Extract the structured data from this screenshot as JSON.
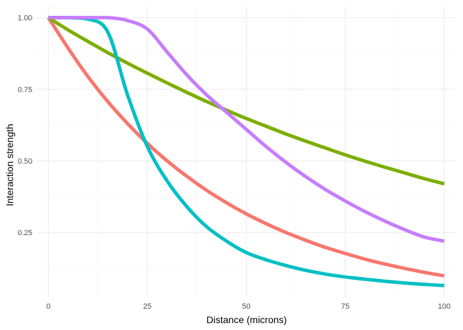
{
  "chart_data": {
    "type": "line",
    "title": "",
    "xlabel": "Distance (microns)",
    "ylabel": "Interaction strength",
    "xlim": [
      -3,
      103
    ],
    "ylim": [
      0.025,
      1.04
    ],
    "x_ticks": [
      0,
      25,
      50,
      75,
      100
    ],
    "x_tick_labels": [
      "0",
      "25",
      "50",
      "75",
      "100"
    ],
    "y_ticks": [
      0.25,
      0.5,
      0.75,
      1.0
    ],
    "y_tick_labels": [
      "0.25",
      "0.50",
      "0.75",
      "1.00"
    ],
    "grid": true,
    "legend": "none",
    "x": [
      0,
      5,
      10,
      15,
      20,
      25,
      30,
      35,
      40,
      45,
      50,
      55,
      60,
      65,
      70,
      75,
      80,
      85,
      90,
      95,
      100
    ],
    "series": [
      {
        "color": "#F8766D",
        "values": [
          1.0,
          0.893,
          0.794,
          0.707,
          0.63,
          0.561,
          0.5,
          0.446,
          0.397,
          0.354,
          0.315,
          0.281,
          0.25,
          0.223,
          0.198,
          0.177,
          0.157,
          0.14,
          0.125,
          0.111,
          0.099
        ]
      },
      {
        "color": "#7CAE00",
        "values": [
          1.0,
          0.957,
          0.917,
          0.878,
          0.841,
          0.806,
          0.772,
          0.739,
          0.707,
          0.677,
          0.648,
          0.621,
          0.594,
          0.569,
          0.545,
          0.521,
          0.499,
          0.478,
          0.458,
          0.438,
          0.42
        ]
      },
      {
        "color": "#00BFC4",
        "values": [
          1.0,
          1.0,
          0.995,
          0.95,
          0.73,
          0.55,
          0.43,
          0.34,
          0.27,
          0.22,
          0.18,
          0.155,
          0.135,
          0.118,
          0.105,
          0.095,
          0.087,
          0.08,
          0.074,
          0.069,
          0.065
        ]
      },
      {
        "color": "#C77CFF",
        "values": [
          1.0,
          1.0,
          1.0,
          1.0,
          0.99,
          0.96,
          0.88,
          0.8,
          0.73,
          0.67,
          0.61,
          0.55,
          0.495,
          0.445,
          0.4,
          0.36,
          0.323,
          0.29,
          0.26,
          0.234,
          0.22
        ]
      }
    ]
  }
}
